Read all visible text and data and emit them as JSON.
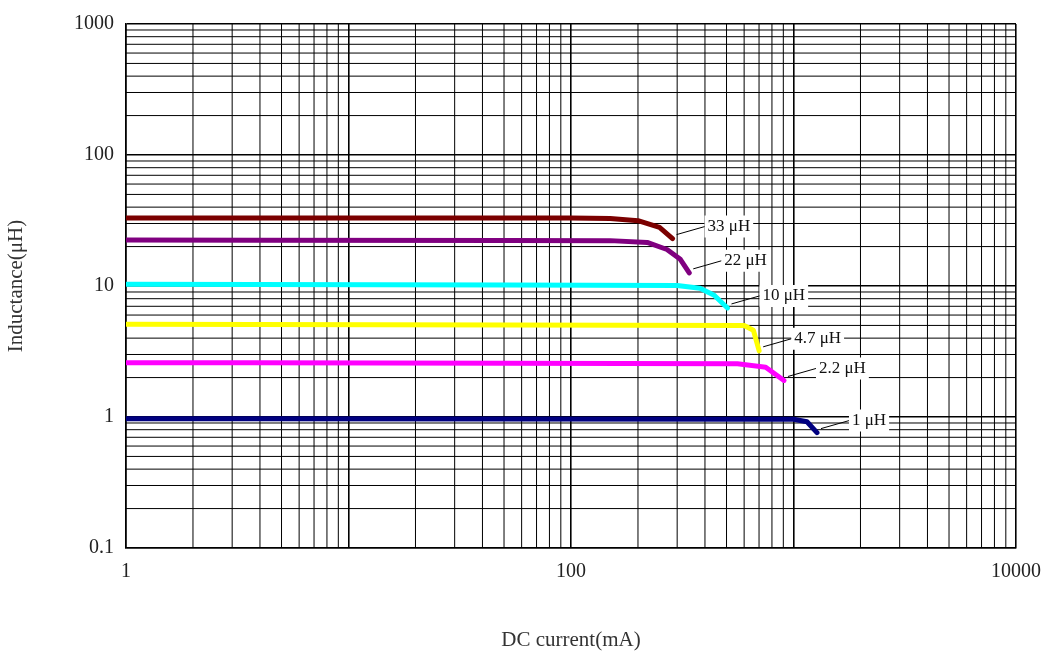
{
  "chart_data": {
    "type": "line",
    "xlabel": "DC current(mA)",
    "ylabel": "Inductance(μH)",
    "log": "xy",
    "grid": true,
    "legend": false,
    "marker": "none",
    "line_style": "solid",
    "xlim": [
      1,
      10000
    ],
    "xticks": [
      1,
      {
        "value": 10,
        "label": null
      },
      100,
      {
        "value": 1000,
        "label": null
      },
      10000
    ],
    "ylim": [
      0.1,
      1000
    ],
    "yticks": [
      0.1,
      1,
      10,
      100,
      1000
    ],
    "series": [
      {
        "name": "33 μH",
        "color": "#7b0000",
        "x": [
          1,
          100,
          150,
          200,
          250,
          286
        ],
        "values": [
          33,
          33,
          32.8,
          31.5,
          28,
          23
        ]
      },
      {
        "name": "22 μH",
        "color": "#800080",
        "x": [
          1,
          150,
          220,
          270,
          310,
          340
        ],
        "values": [
          22.4,
          22.2,
          21.5,
          19,
          16,
          12.6
        ]
      },
      {
        "name": "10 μH",
        "color": "#00ffff",
        "x": [
          1,
          300,
          380,
          440,
          505
        ],
        "values": [
          10.3,
          10.1,
          9.6,
          8.5,
          6.8
        ]
      },
      {
        "name": "4.7 μH",
        "color": "#ffff00",
        "x": [
          1,
          600,
          660,
          701
        ],
        "values": [
          5.1,
          5.0,
          4.6,
          3.2
        ]
      },
      {
        "name": "2.2 μH",
        "color": "#ff00ff",
        "x": [
          1,
          560,
          750,
          906
        ],
        "values": [
          2.6,
          2.55,
          2.4,
          1.9
        ]
      },
      {
        "name": "1 μH",
        "color": "#000080",
        "x": [
          1,
          1000,
          1150,
          1275
        ],
        "values": [
          0.97,
          0.96,
          0.92,
          0.76
        ]
      }
    ]
  }
}
